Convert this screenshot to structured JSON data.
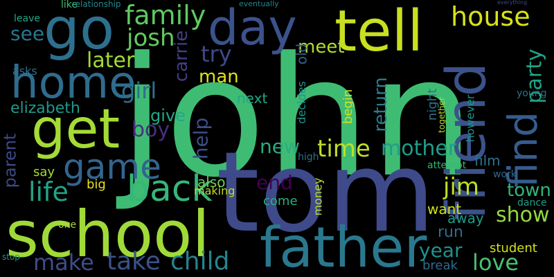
{
  "words": [
    {
      "text": "john",
      "color": "#3fbc73"
    },
    {
      "text": "tom",
      "color": "#3f4a8a"
    },
    {
      "text": "school",
      "color": "#a0da39"
    },
    {
      "text": "father",
      "color": "#2a788e"
    },
    {
      "text": "friend",
      "color": "#3b528b"
    },
    {
      "text": "tell",
      "color": "#c8e020"
    },
    {
      "text": "go",
      "color": "#2d708e"
    },
    {
      "text": "get",
      "color": "#a5db36"
    },
    {
      "text": "home",
      "color": "#2f6c8e"
    },
    {
      "text": "day",
      "color": "#3b528b"
    },
    {
      "text": "back",
      "color": "#35b779"
    },
    {
      "text": "game",
      "color": "#32658e"
    },
    {
      "text": "family",
      "color": "#5ec962"
    },
    {
      "text": "josh",
      "color": "#63cb5f"
    },
    {
      "text": "house",
      "color": "#d8e219"
    },
    {
      "text": "find",
      "color": "#365c8d"
    },
    {
      "text": "life",
      "color": "#20a386"
    },
    {
      "text": "take",
      "color": "#3b528b"
    },
    {
      "text": "child",
      "color": "#25848e"
    },
    {
      "text": "make",
      "color": "#3e4c8a"
    },
    {
      "text": "love",
      "color": "#4ac16d"
    },
    {
      "text": "time",
      "color": "#c0df25"
    },
    {
      "text": "mother",
      "color": "#1f9e89"
    },
    {
      "text": "jim",
      "color": "#bddf26"
    },
    {
      "text": "later",
      "color": "#a2da37"
    },
    {
      "text": "girl",
      "color": "#2e6f8e"
    },
    {
      "text": "boy",
      "color": "#472f7d"
    },
    {
      "text": "try",
      "color": "#3e4a89"
    },
    {
      "text": "new",
      "color": "#28ae80"
    },
    {
      "text": "show",
      "color": "#95d840"
    },
    {
      "text": "year",
      "color": "#21918c"
    },
    {
      "text": "party",
      "color": "#20a486"
    },
    {
      "text": "town",
      "color": "#31b57b"
    },
    {
      "text": "elizabeth",
      "color": "#1f9a8a"
    },
    {
      "text": "help",
      "color": "#3d4e8a"
    },
    {
      "text": "end",
      "color": "#440154"
    },
    {
      "text": "man",
      "color": "#dde318"
    },
    {
      "text": "meet",
      "color": "#b2dd2d"
    },
    {
      "text": "see",
      "color": "#2a768e"
    },
    {
      "text": "carrie",
      "color": "#433e85"
    },
    {
      "text": "return",
      "color": "#287d8e"
    },
    {
      "text": "parent",
      "color": "#3e4989"
    },
    {
      "text": "give",
      "color": "#22a785"
    },
    {
      "text": "say",
      "color": "#a8db34"
    },
    {
      "text": "want",
      "color": "#d0e11c"
    },
    {
      "text": "run",
      "color": "#2e6e8e"
    },
    {
      "text": "away",
      "color": "#1e9c89"
    },
    {
      "text": "also",
      "color": "#6ece58"
    },
    {
      "text": "come",
      "color": "#2ab07f"
    },
    {
      "text": "film",
      "color": "#2d718e"
    },
    {
      "text": "student",
      "color": "#d2e21b"
    },
    {
      "text": "break",
      "color": "#2f6b8e"
    },
    {
      "text": "next",
      "color": "#22a884"
    },
    {
      "text": "old",
      "color": "#34608d"
    },
    {
      "text": "decides",
      "color": "#1f958b"
    },
    {
      "text": "begin",
      "color": "#d5e21a"
    },
    {
      "text": "night",
      "color": "#2c738e"
    },
    {
      "text": "however",
      "color": "#20928c"
    },
    {
      "text": "together",
      "color": "#b5de2b"
    },
    {
      "text": "big",
      "color": "#eae51a"
    },
    {
      "text": "money",
      "color": "#bade28"
    },
    {
      "text": "making",
      "color": "#bddf26"
    },
    {
      "text": "asks",
      "color": "#2c728e"
    },
    {
      "text": "leave",
      "color": "#22a785"
    },
    {
      "text": "like",
      "color": "#42be71"
    },
    {
      "text": "high",
      "color": "#2d718e"
    },
    {
      "text": "attempt",
      "color": "#34b679"
    },
    {
      "text": "work",
      "color": "#31678e"
    },
    {
      "text": "dance",
      "color": "#1f9e89"
    },
    {
      "text": "young",
      "color": "#2c728e"
    },
    {
      "text": "one",
      "color": "#a5db36"
    },
    {
      "text": "stop",
      "color": "#1f968b"
    },
    {
      "text": "relationship",
      "color": "#238a8d"
    },
    {
      "text": "eventually",
      "color": "#25848e"
    },
    {
      "text": "everything",
      "color": "#3e4989"
    }
  ]
}
